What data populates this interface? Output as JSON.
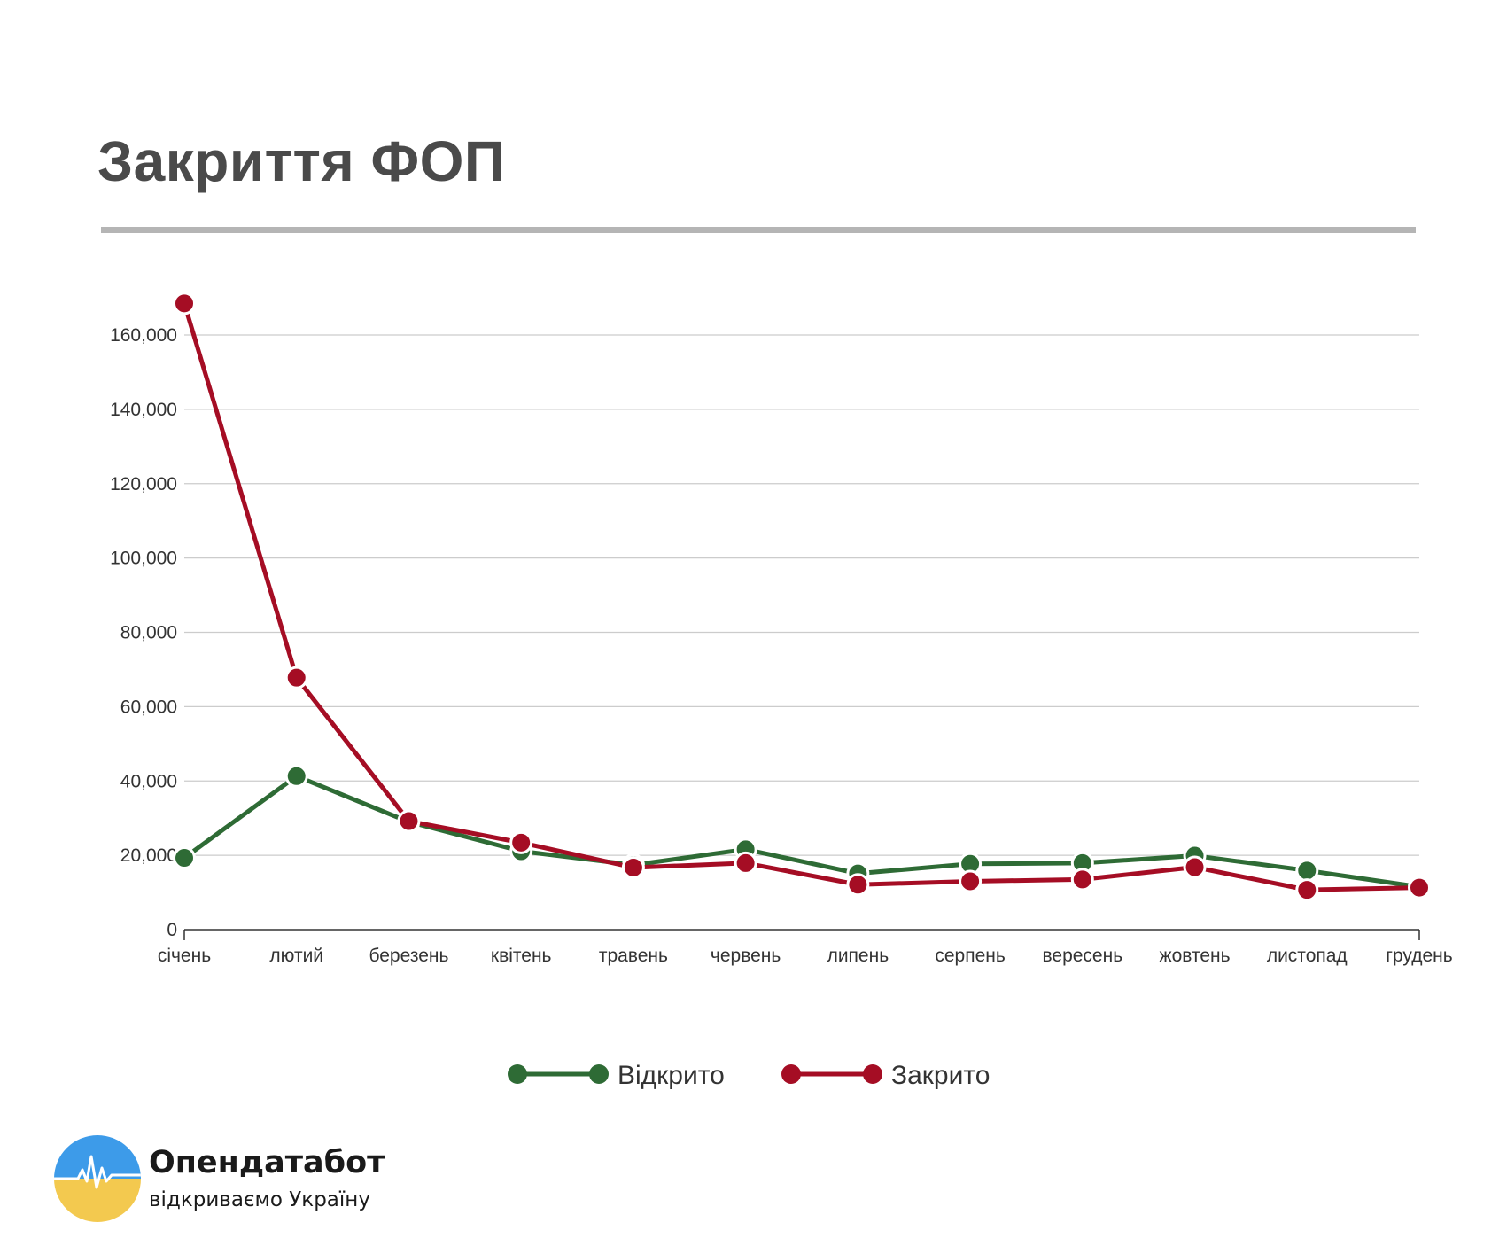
{
  "title": "Закриття ФОП",
  "colors": {
    "opened": "#2e6b35",
    "closed": "#a50d24",
    "grid": "#cccccc",
    "rule": "#b5b5b5"
  },
  "chart_data": {
    "type": "line",
    "title": "Закриття ФОП",
    "xlabel": "",
    "ylabel": "",
    "categories": [
      "січень",
      "лютий",
      "березень",
      "квітень",
      "травень",
      "червень",
      "липень",
      "серпень",
      "вересень",
      "жовтень",
      "листопад",
      "грудень"
    ],
    "yticks": [
      "0",
      "20,000",
      "40,000",
      "60,000",
      "80,000",
      "100,000",
      "120,000",
      "140,000",
      "160,000"
    ],
    "ylim": [
      0,
      160000
    ],
    "grid": true,
    "legend_position": "bottom-center",
    "series": [
      {
        "name": "Відкрито",
        "color": "#2e6b35",
        "values": [
          19300,
          41300,
          29000,
          21100,
          17400,
          21600,
          15100,
          17700,
          17900,
          19900,
          15900,
          11500
        ]
      },
      {
        "name": "Закрито",
        "color": "#a50d24",
        "values": [
          168500,
          67800,
          29200,
          23400,
          16700,
          17900,
          12100,
          13000,
          13500,
          16800,
          10700,
          11300
        ]
      }
    ]
  },
  "logo": {
    "name": "Опендатабот",
    "tagline": "відкриваємо Україну"
  }
}
